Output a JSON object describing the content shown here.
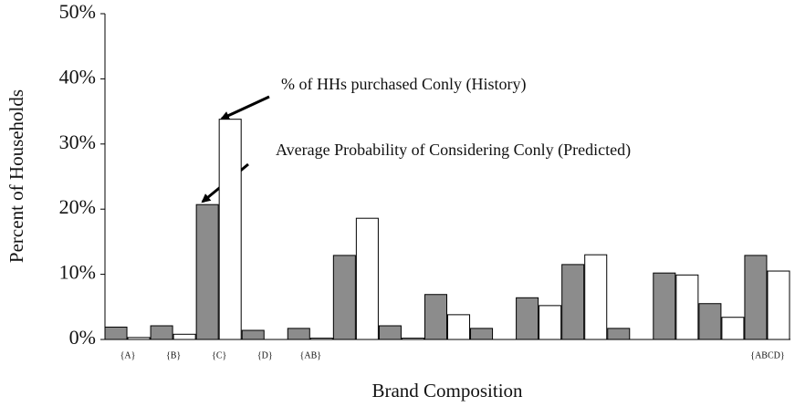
{
  "chart_data": {
    "type": "bar",
    "x_label": "Brand Composition",
    "y_label": "Percent of Households",
    "categories": [
      "{A}",
      "{B}",
      "{C}",
      "{D}",
      "{AB}",
      null,
      null,
      null,
      null,
      null,
      null,
      null,
      null,
      null,
      "{ABCD}"
    ],
    "series": [
      {
        "name": "Average Probability of Considering Conly (Predicted)",
        "color": "#8c8c8c",
        "values": [
          1.9,
          2.1,
          20.7,
          1.4,
          1.7,
          12.9,
          2.1,
          6.9,
          1.7,
          6.4,
          11.5,
          1.7,
          10.2,
          5.5,
          12.9
        ]
      },
      {
        "name": "% of HHs purchased Conly (History)",
        "color": "#ffffff",
        "values": [
          0.3,
          0.8,
          33.8,
          0,
          0.2,
          18.6,
          0.2,
          3.8,
          0,
          5.2,
          13.0,
          0,
          9.9,
          3.4,
          10.5
        ]
      }
    ],
    "ylim": [
      0,
      50
    ],
    "yticks": [
      {
        "value": 0,
        "label": "0%"
      },
      {
        "value": 10,
        "label": "10%"
      },
      {
        "value": 20,
        "label": "20%"
      },
      {
        "value": 30,
        "label": "30%"
      },
      {
        "value": 40,
        "label": "40%"
      },
      {
        "value": 50,
        "label": "50%"
      }
    ]
  }
}
